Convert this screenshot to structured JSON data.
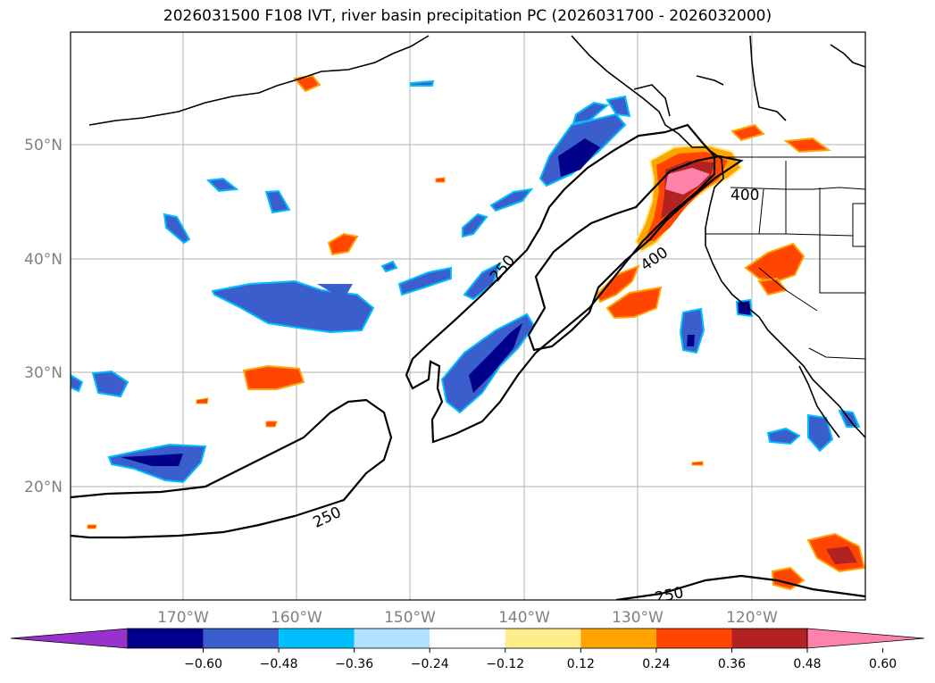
{
  "title": "2026031500 F108 IVT, river basin precipitation PC (2026031700 - 2026032000)",
  "map": {
    "lon_ticks": [
      "170°W",
      "160°W",
      "150°W",
      "140°W",
      "130°W",
      "120°W"
    ],
    "lat_ticks": [
      "50°N",
      "40°N",
      "30°N",
      "20°N"
    ],
    "ivt_contour_labels": [
      "250",
      "250",
      "400",
      "400",
      "250"
    ]
  },
  "colorbar": {
    "tick_labels": [
      "−0.60",
      "−0.48",
      "−0.36",
      "−0.24",
      "−0.12",
      "0.12",
      "0.24",
      "0.36",
      "0.48",
      "0.60"
    ],
    "colors": [
      "#9932cc",
      "#00008b",
      "#3a5fcd",
      "#00bfff",
      "#b0e2ff",
      "#ffffff",
      "#ffec8b",
      "#ffa500",
      "#ff4500",
      "#b22222",
      "#ff82ab"
    ]
  }
}
